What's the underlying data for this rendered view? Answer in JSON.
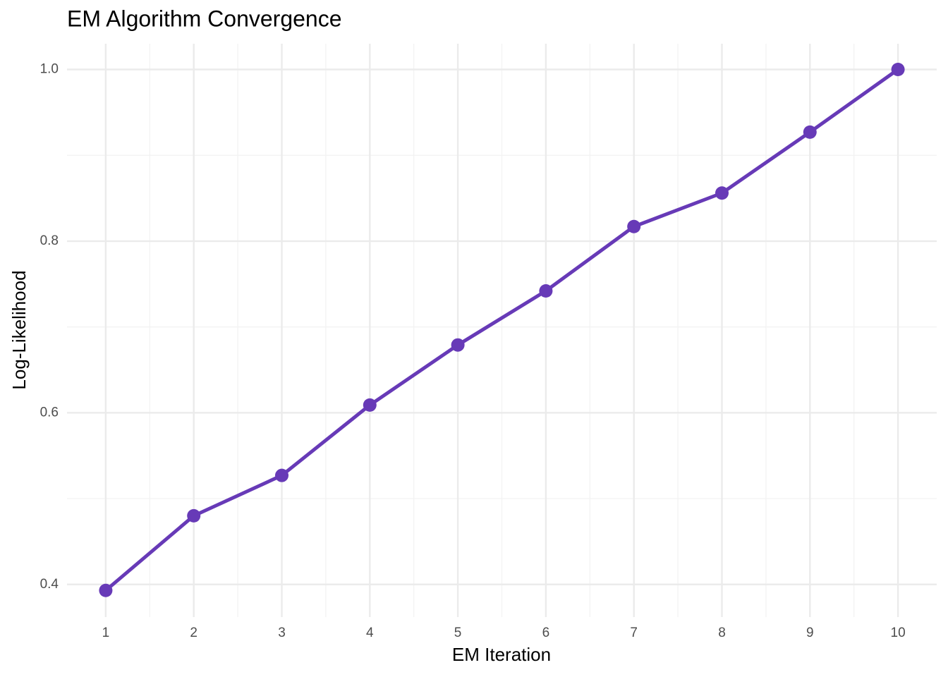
{
  "chart_data": {
    "type": "line",
    "title": "EM Algorithm Convergence",
    "x_label": "EM Iteration",
    "y_label": "Log-Likelihood",
    "x": [
      1,
      2,
      3,
      4,
      5,
      6,
      7,
      8,
      9,
      10
    ],
    "series": [
      {
        "name": "Log-Likelihood",
        "color": "#673ab7",
        "values": [
          0.393,
          0.48,
          0.527,
          0.609,
          0.679,
          0.742,
          0.817,
          0.856,
          0.927,
          1.0
        ]
      }
    ],
    "xlim": [
      0.56,
      10.44
    ],
    "ylim": [
      0.362,
      1.03
    ],
    "xticks": [
      1,
      2,
      3,
      4,
      5,
      6,
      7,
      8,
      9,
      10
    ],
    "yticks": [
      {
        "value": 0.4,
        "label": "0.4"
      },
      {
        "value": 0.6,
        "label": "0.6"
      },
      {
        "value": 0.8,
        "label": "0.8"
      },
      {
        "value": 1.0,
        "label": "1.0"
      }
    ],
    "grid": true
  }
}
